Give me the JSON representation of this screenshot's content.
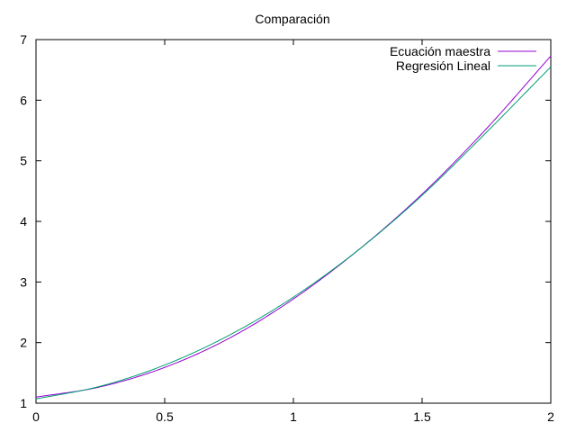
{
  "chart_data": {
    "type": "line",
    "title": "Comparación",
    "xlabel": "",
    "ylabel": "",
    "xlim": [
      0,
      2
    ],
    "ylim": [
      1,
      7
    ],
    "x_ticks": [
      0,
      0.5,
      1,
      1.5,
      2
    ],
    "x_tick_labels": [
      "0",
      "0.5",
      "1",
      "1.5",
      "2"
    ],
    "y_ticks": [
      1,
      2,
      3,
      4,
      5,
      6,
      7
    ],
    "y_tick_labels": [
      "1",
      "2",
      "3",
      "4",
      "5",
      "6",
      "7"
    ],
    "grid": false,
    "legend_position": "top-right",
    "series": [
      {
        "name": "Ecuación maestra",
        "color": "#9400d3",
        "x": [
          0,
          0.25,
          0.5,
          0.75,
          1.0,
          1.25,
          1.5,
          1.75,
          2.0
        ],
        "y": [
          1.1,
          1.27,
          1.59,
          2.07,
          2.72,
          3.52,
          4.45,
          5.53,
          6.73
        ]
      },
      {
        "name": "Regresión Lineal",
        "color": "#009e73",
        "x": [
          0,
          0.25,
          0.5,
          0.75,
          1.0,
          1.25,
          1.5,
          1.75,
          2.0
        ],
        "y": [
          1.07,
          1.28,
          1.63,
          2.12,
          2.75,
          3.52,
          4.43,
          5.47,
          6.55
        ]
      }
    ]
  }
}
